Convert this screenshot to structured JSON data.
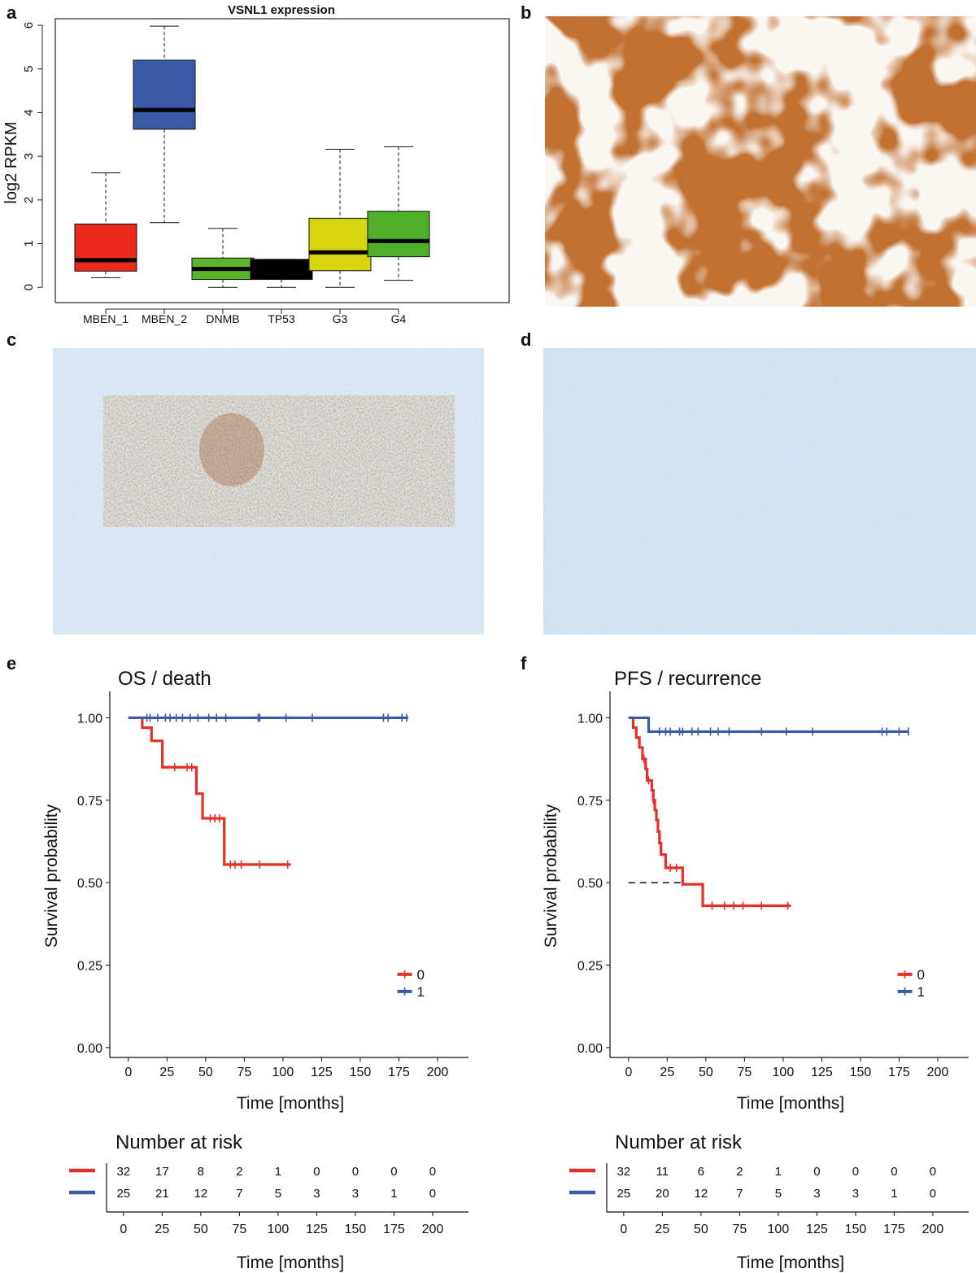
{
  "panels": {
    "a": "a",
    "b": "b",
    "c": "c",
    "d": "d",
    "e": "e",
    "f": "f"
  },
  "chart_data": [
    {
      "type": "box",
      "title": "VSNL1 expression",
      "xlabel": "",
      "ylabel": "log2 RPKM",
      "ylim": [
        -0.35,
        6.15
      ],
      "yticks": [
        0,
        1,
        2,
        3,
        4,
        5,
        6
      ],
      "categories": [
        "MBEN_1",
        "MBEN_2",
        "DNMB",
        "TP53",
        "G3",
        "G4"
      ],
      "colors": [
        "#e8291c",
        "#3a5aa8",
        "#5ab52c",
        "#000000",
        "#d5d60e",
        "#4fae2a"
      ],
      "boxes": [
        {
          "category": "MBEN_1",
          "whisker_low": 0.22,
          "q1": 0.37,
          "median": 0.62,
          "q3": 1.45,
          "whisker_high": 2.62
        },
        {
          "category": "MBEN_2",
          "whisker_low": 1.48,
          "q1": 3.62,
          "median": 4.06,
          "q3": 5.2,
          "whisker_high": 5.98
        },
        {
          "category": "DNMB",
          "whisker_low": 0.0,
          "q1": 0.18,
          "median": 0.42,
          "q3": 0.67,
          "whisker_high": 1.35
        },
        {
          "category": "TP53",
          "whisker_low": 0.0,
          "q1": 0.18,
          "median": 0.42,
          "q3": 0.64,
          "whisker_high": 0.64
        },
        {
          "category": "G3",
          "whisker_low": 0.0,
          "q1": 0.38,
          "median": 0.8,
          "q3": 1.58,
          "whisker_high": 3.16
        },
        {
          "category": "G4",
          "whisker_low": 0.16,
          "q1": 0.7,
          "median": 1.06,
          "q3": 1.74,
          "whisker_high": 3.22
        }
      ]
    },
    {
      "type": "line",
      "subtype": "kaplan-meier",
      "title": "OS / death",
      "xlabel": "Time [months]",
      "ylabel": "Survival probability",
      "xlim": [
        -12,
        220
      ],
      "ylim": [
        -0.03,
        1.08
      ],
      "xticks": [
        0,
        25,
        50,
        75,
        100,
        125,
        150,
        175,
        200
      ],
      "yticks": [
        "0.00",
        "0.25",
        "0.50",
        "0.75",
        "1.00"
      ],
      "legend_position": "bottom-right",
      "series": [
        {
          "name": "0",
          "color": "#e3302a",
          "steps": [
            [
              0,
              1.0
            ],
            [
              9,
              0.97
            ],
            [
              15,
              0.93
            ],
            [
              22,
              0.85
            ],
            [
              44,
              0.77
            ],
            [
              48,
              0.695
            ],
            [
              62,
              0.555
            ],
            [
              105,
              0.555
            ]
          ],
          "censor": [
            30,
            38,
            41,
            53,
            56,
            59,
            66,
            69,
            73,
            85,
            103
          ]
        },
        {
          "name": "1",
          "color": "#3a5aa8",
          "steps": [
            [
              0,
              1.0
            ],
            [
              181,
              1.0
            ]
          ],
          "censor": [
            12,
            14,
            19,
            24,
            27,
            31,
            35,
            40,
            45,
            52,
            57,
            63,
            84,
            85,
            102,
            119,
            165,
            168,
            177,
            180
          ]
        }
      ],
      "risk_table": {
        "title": "Number at risk",
        "times": [
          0,
          25,
          50,
          75,
          100,
          125,
          150,
          175,
          200
        ],
        "rows": [
          {
            "group": "0",
            "color": "#e3302a",
            "values": [
              32,
              17,
              8,
              2,
              1,
              0,
              0,
              0,
              0
            ]
          },
          {
            "group": "1",
            "color": "#3a5aa8",
            "values": [
              25,
              21,
              12,
              7,
              5,
              3,
              3,
              1,
              0
            ]
          }
        ],
        "xlabel": "Time [months]"
      }
    },
    {
      "type": "line",
      "subtype": "kaplan-meier",
      "title": "PFS / recurrence",
      "xlabel": "Time [months]",
      "ylabel": "Survival probability",
      "xlim": [
        -12,
        220
      ],
      "ylim": [
        -0.03,
        1.08
      ],
      "xticks": [
        0,
        25,
        50,
        75,
        100,
        125,
        150,
        175,
        200
      ],
      "yticks": [
        "0.00",
        "0.25",
        "0.50",
        "0.75",
        "1.00"
      ],
      "legend_position": "bottom-right",
      "median_line": {
        "y": 0.5,
        "x_end": 35
      },
      "series": [
        {
          "name": "0",
          "color": "#e3302a",
          "steps": [
            [
              0,
              1.0
            ],
            [
              3,
              0.97
            ],
            [
              5,
              0.94
            ],
            [
              7,
              0.91
            ],
            [
              9,
              0.875
            ],
            [
              11,
              0.845
            ],
            [
              12,
              0.81
            ],
            [
              15,
              0.78
            ],
            [
              16,
              0.75
            ],
            [
              17,
              0.72
            ],
            [
              18,
              0.69
            ],
            [
              19,
              0.655
            ],
            [
              20,
              0.62
            ],
            [
              21,
              0.585
            ],
            [
              24,
              0.545
            ],
            [
              35,
              0.495
            ],
            [
              48,
              0.43
            ],
            [
              105,
              0.43
            ]
          ],
          "censor": [
            10,
            13,
            16,
            27,
            31,
            54,
            62,
            68,
            74,
            86,
            103
          ]
        },
        {
          "name": "1",
          "color": "#3a5aa8",
          "steps": [
            [
              0,
              1.0
            ],
            [
              13,
              1.0
            ],
            [
              13,
              0.958
            ],
            [
              181,
              0.958
            ]
          ],
          "censor": [
            20,
            24,
            27,
            33,
            35,
            41,
            45,
            53,
            58,
            65,
            86,
            102,
            119,
            164,
            167,
            175,
            181
          ]
        }
      ],
      "risk_table": {
        "title": "Number at risk",
        "times": [
          0,
          25,
          50,
          75,
          100,
          125,
          150,
          175,
          200
        ],
        "rows": [
          {
            "group": "0",
            "color": "#e3302a",
            "values": [
              32,
              11,
              6,
              2,
              1,
              0,
              0,
              0,
              0
            ]
          },
          {
            "group": "1",
            "color": "#3a5aa8",
            "values": [
              25,
              20,
              12,
              7,
              5,
              3,
              3,
              1,
              0
            ]
          }
        ],
        "xlabel": "Time [months]"
      }
    }
  ]
}
